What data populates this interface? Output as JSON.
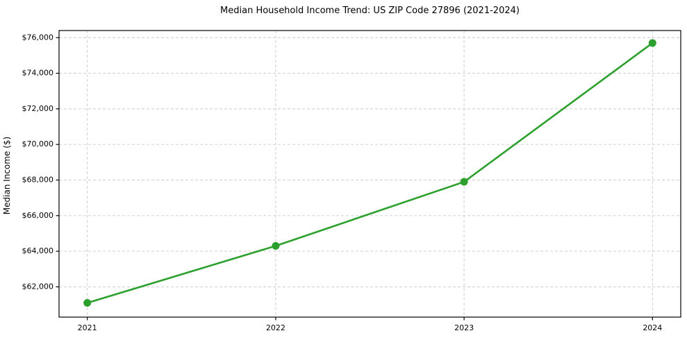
{
  "figure": {
    "title": "Median Household Income Trend: US ZIP Code 27896 (2021-2024)",
    "ylabel": "Median Income ($)"
  },
  "chart_data": {
    "type": "line",
    "title": "Median Household Income Trend: US ZIP Code 27896 (2021-2024)",
    "xlabel": "",
    "ylabel": "Median Income ($)",
    "x": [
      2021,
      2022,
      2023,
      2024
    ],
    "xtick_labels": [
      "2021",
      "2022",
      "2023",
      "2024"
    ],
    "series": [
      {
        "name": "Median Household Income",
        "values": [
          61100,
          64300,
          67900,
          75700
        ]
      }
    ],
    "yticks": [
      62000,
      64000,
      66000,
      68000,
      70000,
      72000,
      74000,
      76000
    ],
    "ytick_prefix": "$",
    "xlim": [
      2020.85,
      2024.15
    ],
    "ylim": [
      60300,
      76400
    ],
    "grid": true,
    "grid_style": "dashed",
    "legend": false,
    "line_color": "#2ca02c",
    "marker_color": "#2ca02c",
    "grid_color": "#c9c9c9",
    "spine_color": "#000000",
    "background": "#ffffff"
  }
}
